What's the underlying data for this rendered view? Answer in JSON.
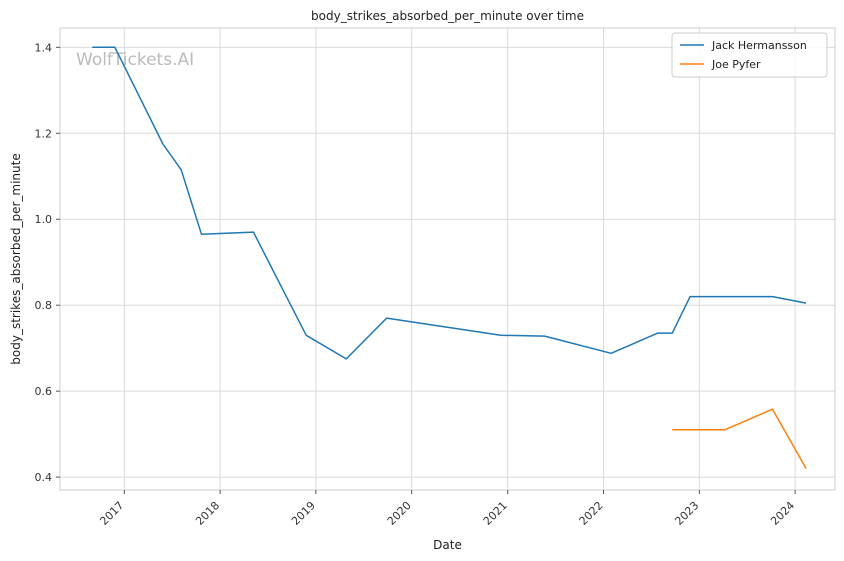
{
  "watermark": "WolfTickets.AI",
  "chart_data": {
    "type": "line",
    "title": "body_strikes_absorbed_per_minute over time",
    "xlabel": "Date",
    "ylabel": "body_strikes_absorbed_per_minute",
    "x_ticks": [
      "2017",
      "2018",
      "2019",
      "2020",
      "2021",
      "2022",
      "2023",
      "2024"
    ],
    "y_ticks": [
      "0.4",
      "0.6",
      "0.8",
      "1.0",
      "1.2",
      "1.4"
    ],
    "xlim": [
      "2016-05-01",
      "2024-06-01"
    ],
    "ylim": [
      0.37,
      1.445
    ],
    "grid": true,
    "legend_position": "top-right",
    "series": [
      {
        "name": "Jack Hermansson",
        "color": "#1f77b4",
        "points": [
          {
            "x": "2016-09-01",
            "y": 1.4
          },
          {
            "x": "2016-11-26",
            "y": 1.4
          },
          {
            "x": "2017-05-28",
            "y": 1.175
          },
          {
            "x": "2017-08-06",
            "y": 1.115
          },
          {
            "x": "2017-10-22",
            "y": 0.965
          },
          {
            "x": "2018-05-08",
            "y": 0.97
          },
          {
            "x": "2018-11-25",
            "y": 0.73
          },
          {
            "x": "2019-04-27",
            "y": 0.675
          },
          {
            "x": "2019-09-28",
            "y": 0.77
          },
          {
            "x": "2020-12-05",
            "y": 0.73
          },
          {
            "x": "2021-05-22",
            "y": 0.728
          },
          {
            "x": "2022-01-30",
            "y": 0.688
          },
          {
            "x": "2022-07-27",
            "y": 0.735
          },
          {
            "x": "2022-09-20",
            "y": 0.735
          },
          {
            "x": "2022-11-27",
            "y": 0.82
          },
          {
            "x": "2023-10-07",
            "y": 0.82
          },
          {
            "x": "2024-02-12",
            "y": 0.805
          }
        ]
      },
      {
        "name": "Joe Pyfer",
        "color": "#ff7f0e",
        "points": [
          {
            "x": "2022-09-20",
            "y": 0.51
          },
          {
            "x": "2023-04-08",
            "y": 0.51
          },
          {
            "x": "2023-10-07",
            "y": 0.558
          },
          {
            "x": "2024-02-12",
            "y": 0.42
          }
        ]
      }
    ]
  }
}
